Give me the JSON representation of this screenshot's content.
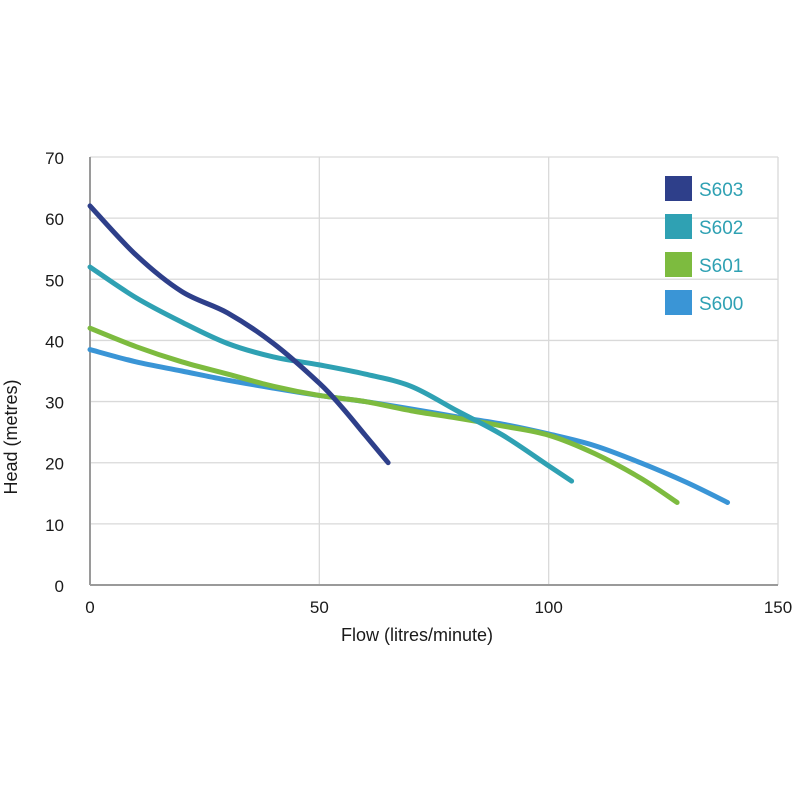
{
  "chart_data": {
    "type": "line",
    "xlabel": "Flow (litres/minute)",
    "ylabel": "Head (metres)",
    "xlim": [
      0,
      150
    ],
    "ylim": [
      0,
      70
    ],
    "xticks": [
      "0",
      "50",
      "100",
      "150"
    ],
    "yticks": [
      "0",
      "10",
      "20",
      "30",
      "40",
      "50",
      "60",
      "70"
    ],
    "grid": true,
    "legend_position": "top-right",
    "series": [
      {
        "name": "S603",
        "color": "#2e3f8a",
        "points": [
          [
            0,
            62
          ],
          [
            10,
            54
          ],
          [
            20,
            48
          ],
          [
            30,
            44.5
          ],
          [
            40,
            39.5
          ],
          [
            50,
            33
          ],
          [
            55,
            29
          ],
          [
            60,
            24.5
          ],
          [
            65,
            20
          ]
        ]
      },
      {
        "name": "S602",
        "color": "#2fa1b3",
        "points": [
          [
            0,
            52
          ],
          [
            10,
            47
          ],
          [
            20,
            43
          ],
          [
            30,
            39.5
          ],
          [
            40,
            37.3
          ],
          [
            50,
            36
          ],
          [
            60,
            34.5
          ],
          [
            70,
            32.5
          ],
          [
            80,
            28.5
          ],
          [
            90,
            24.5
          ],
          [
            100,
            19.5
          ],
          [
            105,
            17
          ]
        ]
      },
      {
        "name": "S601",
        "color": "#7dbb3f",
        "points": [
          [
            0,
            42
          ],
          [
            10,
            39
          ],
          [
            20,
            36.5
          ],
          [
            30,
            34.5
          ],
          [
            40,
            32.5
          ],
          [
            50,
            31
          ],
          [
            60,
            30
          ],
          [
            70,
            28.5
          ],
          [
            80,
            27.3
          ],
          [
            90,
            26
          ],
          [
            100,
            24.5
          ],
          [
            110,
            21.5
          ],
          [
            120,
            17.5
          ],
          [
            128,
            13.5
          ]
        ]
      },
      {
        "name": "S600",
        "color": "#3a95d6",
        "points": [
          [
            0,
            38.5
          ],
          [
            10,
            36.5
          ],
          [
            20,
            35
          ],
          [
            30,
            33.5
          ],
          [
            40,
            32.2
          ],
          [
            50,
            31
          ],
          [
            60,
            30
          ],
          [
            70,
            28.8
          ],
          [
            80,
            27.5
          ],
          [
            90,
            26.3
          ],
          [
            100,
            24.7
          ],
          [
            110,
            22.8
          ],
          [
            120,
            20
          ],
          [
            130,
            16.8
          ],
          [
            139,
            13.5
          ]
        ]
      }
    ]
  }
}
